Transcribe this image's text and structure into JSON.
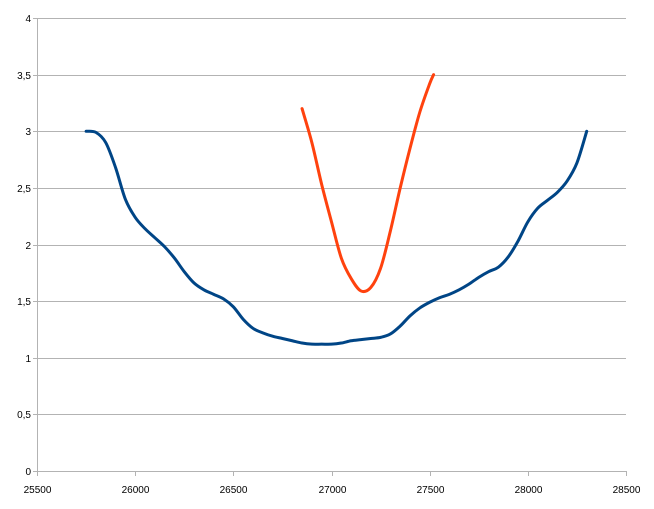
{
  "chart_data": {
    "type": "line",
    "title": "",
    "xlabel": "",
    "ylabel": "",
    "xlim": [
      25500,
      28500
    ],
    "ylim": [
      0,
      4
    ],
    "x_ticks": [
      25500,
      26000,
      26500,
      27000,
      27500,
      28000,
      28500
    ],
    "x_tick_labels": [
      "25500",
      "26000",
      "26500",
      "27000",
      "27500",
      "28000",
      "28500"
    ],
    "y_ticks": [
      0,
      0.5,
      1,
      1.5,
      2,
      2.5,
      3,
      3.5,
      4
    ],
    "y_tick_labels": [
      "0",
      "0,5",
      "1",
      "1,5",
      "2",
      "2,5",
      "3",
      "3,5",
      "4"
    ],
    "grid": "horizontal",
    "legend": "none",
    "colors": {
      "grid": "#b3b3b3",
      "axis": "#b3b3b3",
      "series_1": "#004586",
      "series_2": "#ff420e"
    },
    "series": [
      {
        "color": "#004586",
        "x": [
          25750,
          25800,
          25850,
          25900,
          25950,
          26000,
          26050,
          26100,
          26150,
          26200,
          26250,
          26300,
          26350,
          26400,
          26450,
          26500,
          26550,
          26600,
          26650,
          26700,
          26750,
          26800,
          26850,
          26900,
          26950,
          27000,
          27050,
          27100,
          27150,
          27200,
          27250,
          27300,
          27350,
          27400,
          27450,
          27500,
          27550,
          27600,
          27650,
          27700,
          27750,
          27800,
          27850,
          27900,
          27950,
          28000,
          28050,
          28100,
          28150,
          28200,
          28250,
          28300
        ],
        "y": [
          3.0,
          2.99,
          2.9,
          2.68,
          2.4,
          2.24,
          2.14,
          2.06,
          1.98,
          1.88,
          1.76,
          1.66,
          1.6,
          1.56,
          1.52,
          1.45,
          1.34,
          1.26,
          1.22,
          1.19,
          1.17,
          1.15,
          1.13,
          1.12,
          1.12,
          1.12,
          1.13,
          1.15,
          1.16,
          1.17,
          1.18,
          1.21,
          1.28,
          1.37,
          1.44,
          1.49,
          1.53,
          1.56,
          1.6,
          1.65,
          1.71,
          1.76,
          1.8,
          1.89,
          2.03,
          2.2,
          2.32,
          2.39,
          2.46,
          2.56,
          2.72,
          3.0
        ]
      },
      {
        "color": "#ff420e",
        "x": [
          26850,
          26900,
          26950,
          27000,
          27050,
          27100,
          27150,
          27200,
          27250,
          27300,
          27350,
          27400,
          27450,
          27500,
          27520
        ],
        "y": [
          3.2,
          2.9,
          2.53,
          2.2,
          1.88,
          1.7,
          1.59,
          1.62,
          1.79,
          2.12,
          2.5,
          2.85,
          3.17,
          3.42,
          3.5
        ]
      }
    ]
  }
}
